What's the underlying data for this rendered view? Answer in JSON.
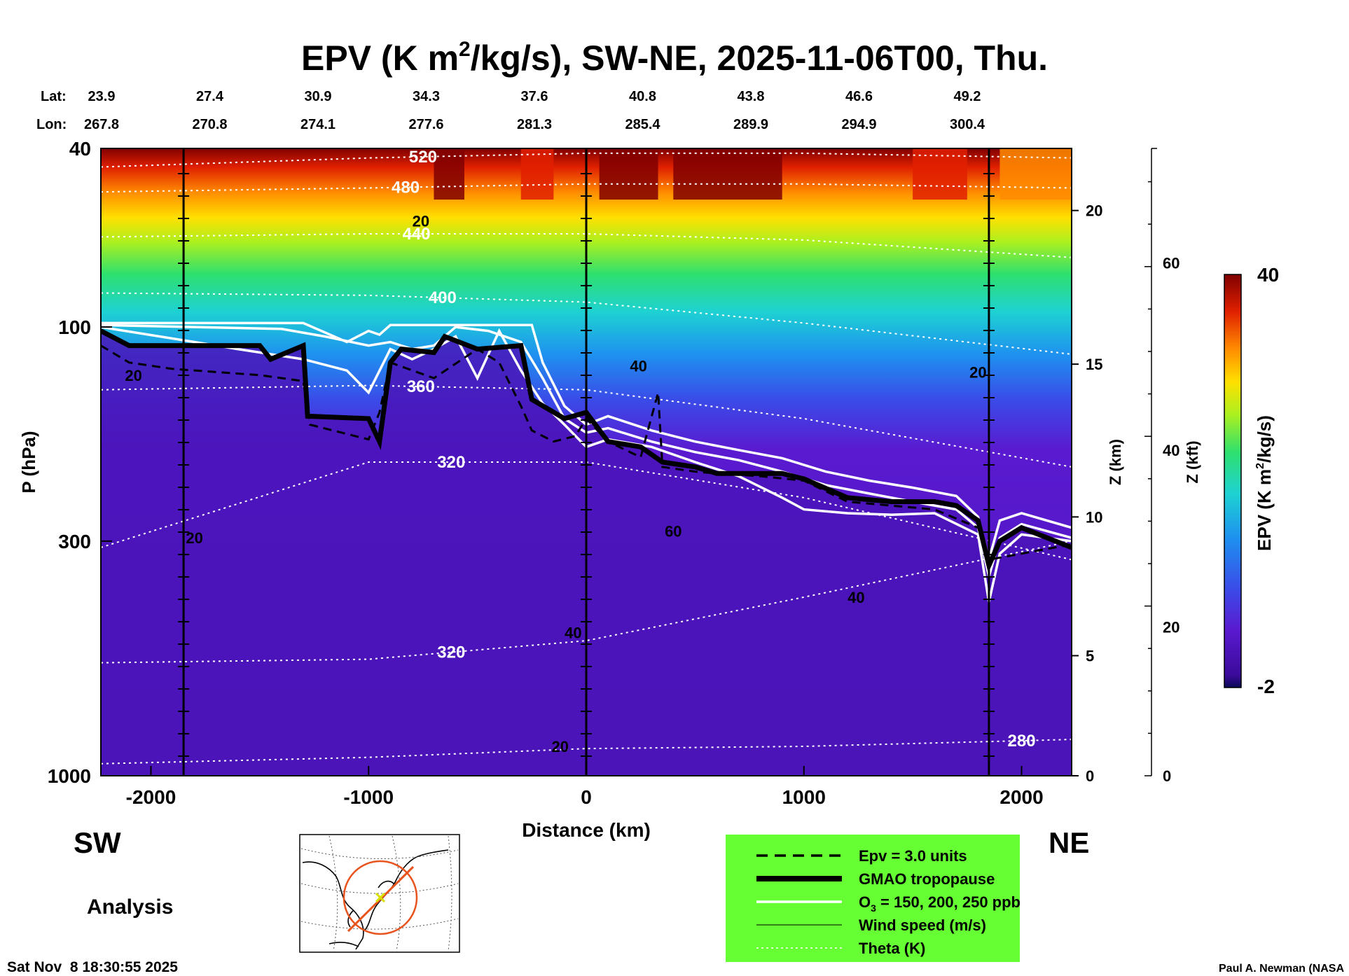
{
  "chart_data": {
    "type": "heatmap",
    "title": "EPV (K m²/kg/s), SW-NE, 2025-11-06T00, Thu.",
    "title_parts": {
      "pre": "EPV (K m",
      "sup": "2",
      "post": "/kg/s), SW-NE, 2025-11-06T00, Thu."
    },
    "xlabel": "Distance (km)",
    "ylabel": "P (hPa)",
    "z_km_label": "Z (km)",
    "z_kft_label": "Z (kft)",
    "colorbar_label": "EPV (K m²/kg/s)",
    "colorbar_label_parts": {
      "pre": "EPV (K m",
      "sup": "2",
      "post": "/kg/s)"
    },
    "colorbar_max_label": "40",
    "colorbar_min_label": "-2",
    "xlim": [
      -2230,
      2230
    ],
    "ylim_hpa": [
      1000,
      40
    ],
    "x_ticks": [
      -2000,
      -1000,
      0,
      1000,
      2000
    ],
    "x_tick_labels": [
      "-2000",
      "-1000",
      "0",
      "1000",
      "2000"
    ],
    "p_ticks": [
      40,
      100,
      300,
      1000
    ],
    "p_tick_labels": [
      "40",
      "100",
      "300",
      "1000"
    ],
    "z_km_ticks": [
      {
        "p": 1000,
        "label": "0"
      },
      {
        "p": 540,
        "label": "5"
      },
      {
        "p": 265,
        "label": "10"
      },
      {
        "p": 121,
        "label": "15"
      },
      {
        "p": 55,
        "label": "20"
      }
    ],
    "z_kft_ticks": [
      {
        "p": 1000,
        "label": "0"
      },
      {
        "p": 466,
        "label": "20"
      },
      {
        "p": 188,
        "label": "40"
      },
      {
        "p": 72,
        "label": "60"
      }
    ],
    "lat_label": "Lat:",
    "lon_label": "Lon:",
    "latlon_columns": [
      {
        "lat": "23.9",
        "lon": "267.8"
      },
      {
        "lat": "27.4",
        "lon": "270.8"
      },
      {
        "lat": "30.9",
        "lon": "274.1"
      },
      {
        "lat": "34.3",
        "lon": "277.6"
      },
      {
        "lat": "37.6",
        "lon": "281.3"
      },
      {
        "lat": "40.8",
        "lon": "285.4"
      },
      {
        "lat": "43.8",
        "lon": "289.9"
      },
      {
        "lat": "46.6",
        "lon": "294.9"
      },
      {
        "lat": "49.2",
        "lon": "300.4"
      }
    ],
    "vertical_markers_km": [
      -1850,
      0,
      1850
    ],
    "tropopause": {
      "x": [
        -2230,
        -2100,
        -1900,
        -1500,
        -1450,
        -1300,
        -1280,
        -1000,
        -950,
        -900,
        -850,
        -700,
        -650,
        -500,
        -300,
        -250,
        -100,
        0,
        100,
        250,
        350,
        500,
        600,
        700,
        900,
        1000,
        1200,
        1400,
        1600,
        1700,
        1800,
        1850,
        1900,
        2000,
        2230
      ],
      "p": [
        102,
        110,
        110,
        110,
        118,
        110,
        158,
        160,
        180,
        120,
        112,
        114,
        105,
        112,
        110,
        145,
        160,
        155,
        180,
        185,
        200,
        205,
        212,
        212,
        212,
        218,
        240,
        245,
        245,
        250,
        270,
        340,
        300,
        280,
        310
      ]
    },
    "epv3_units": {
      "x": [
        -2230,
        -2100,
        -1900,
        -1500,
        -1300,
        -1270,
        -1000,
        -950,
        -900,
        -700,
        -500,
        -400,
        -300,
        -250,
        -150,
        -50,
        0,
        100,
        250,
        330,
        350,
        500,
        600,
        800,
        1000,
        1200,
        1400,
        1600,
        1800,
        1850,
        2230
      ],
      "p": [
        110,
        120,
        124,
        128,
        132,
        165,
        178,
        155,
        120,
        130,
        112,
        120,
        150,
        170,
        180,
        175,
        160,
        180,
        195,
        140,
        205,
        210,
        212,
        215,
        220,
        245,
        250,
        255,
        280,
        330,
        305
      ]
    },
    "ozone_150": {
      "x": [
        -2230,
        -1800,
        -1300,
        -1100,
        -1000,
        -950,
        -900,
        -600,
        -400,
        -250,
        -200,
        -100,
        0,
        100,
        300,
        500,
        700,
        900,
        1100,
        1300,
        1500,
        1700,
        1800,
        1850,
        1900,
        2000,
        2230
      ],
      "p": [
        98,
        98,
        98,
        108,
        102,
        104,
        99,
        99,
        99,
        99,
        120,
        150,
        165,
        158,
        170,
        180,
        188,
        196,
        210,
        220,
        228,
        238,
        265,
        330,
        270,
        260,
        280
      ]
    },
    "ozone_200": {
      "x": [
        -2230,
        -1800,
        -1400,
        -1200,
        -1000,
        -900,
        -800,
        -700,
        -600,
        -450,
        -300,
        -200,
        -100,
        0,
        100,
        300,
        500,
        700,
        900,
        1100,
        1300,
        1500,
        1700,
        1800,
        1850,
        1900,
        2000,
        2230
      ],
      "p": [
        99,
        100,
        101,
        105,
        110,
        108,
        112,
        110,
        100,
        102,
        108,
        130,
        160,
        172,
        168,
        180,
        190,
        198,
        210,
        225,
        235,
        245,
        255,
        280,
        360,
        295,
        275,
        295
      ]
    },
    "ozone_250": {
      "x": [
        -2230,
        -1800,
        -1600,
        -1300,
        -1100,
        -1000,
        -900,
        -800,
        -700,
        -600,
        -500,
        -400,
        -300,
        -200,
        -100,
        0,
        100,
        300,
        500,
        700,
        900,
        1000,
        1200,
        1400,
        1600,
        1800,
        1850,
        1900,
        2000,
        2230
      ],
      "p": [
        100,
        108,
        112,
        118,
        125,
        140,
        112,
        118,
        112,
        105,
        130,
        102,
        125,
        148,
        165,
        185,
        178,
        185,
        200,
        215,
        240,
        255,
        260,
        262,
        260,
        290,
        410,
        320,
        290,
        300
      ]
    },
    "theta_levels": [
      {
        "label": "520",
        "x": [
          -2230,
          -1000,
          0,
          1000,
          2230
        ],
        "p": [
          44,
          42,
          41,
          41,
          42
        ],
        "label_x": -750
      },
      {
        "label": "480",
        "x": [
          -2230,
          -1000,
          0,
          1000,
          2230
        ],
        "p": [
          50,
          49,
          48,
          48,
          49
        ],
        "label_x": -830
      },
      {
        "label": "440",
        "x": [
          -2230,
          -1000,
          0,
          1000,
          2230
        ],
        "p": [
          63,
          62,
          62,
          64,
          70
        ],
        "label_x": -780
      },
      {
        "label": "400",
        "x": [
          -2230,
          -1000,
          0,
          1000,
          2230
        ],
        "p": [
          84,
          85,
          88,
          98,
          115
        ],
        "label_x": -660
      },
      {
        "label": "360",
        "x": [
          -2230,
          -1000,
          0,
          1000,
          2230
        ],
        "p": [
          138,
          135,
          138,
          160,
          205
        ],
        "label_x": -760
      },
      {
        "label": "320",
        "x": [
          -2230,
          -1000,
          0,
          1000,
          2230
        ],
        "p": [
          310,
          200,
          200,
          240,
          330
        ],
        "label_x": -620
      },
      {
        "label": "320",
        "x": [
          -2230,
          -1000,
          0,
          1000,
          2230
        ],
        "p": [
          560,
          550,
          500,
          400,
          300
        ],
        "label_x": -620
      },
      {
        "label": "280",
        "x": [
          -2230,
          -1000,
          0,
          1000,
          2230
        ],
        "p": [
          940,
          910,
          870,
          860,
          830
        ],
        "label_x": 2000
      }
    ],
    "wind_speed_labels": [
      {
        "label": "20",
        "x": -760,
        "p": 58
      },
      {
        "label": "20",
        "x": -2080,
        "p": 128
      },
      {
        "label": "20",
        "x": -1800,
        "p": 295
      },
      {
        "label": "40",
        "x": 240,
        "p": 122
      },
      {
        "label": "20",
        "x": 1800,
        "p": 126
      },
      {
        "label": "60",
        "x": 400,
        "p": 285
      },
      {
        "label": "40",
        "x": -60,
        "p": 480
      },
      {
        "label": "40",
        "x": 1240,
        "p": 400
      },
      {
        "label": "20",
        "x": -120,
        "p": 860
      }
    ],
    "legend_title_direction_left": "SW",
    "legend_title_direction_right": "NE",
    "legend": [
      {
        "key": "epv3",
        "label": "Epv = 3.0 units"
      },
      {
        "key": "tropopause",
        "label": "GMAO tropopause"
      },
      {
        "key": "ozone",
        "label_pre": "O",
        "label_sub": "3",
        "label_post": " = 150, 200, 250 ppb"
      },
      {
        "key": "wind",
        "label": "Wind speed (m/s)"
      },
      {
        "key": "theta",
        "label": "Theta (K)"
      }
    ]
  },
  "footer": {
    "analysis_label": "Analysis",
    "timestamp": "Sat Nov  8 18:30:55 2025",
    "credit": "Paul A. Newman (NASA"
  },
  "colors": {
    "legend_bg": "#66ff33",
    "colormap": [
      "#0a0a55",
      "#3a0a9a",
      "#5a1ad0",
      "#3a4ce8",
      "#1e90f0",
      "#1ed2d2",
      "#2ee06e",
      "#aaf020",
      "#ffe000",
      "#ff8c00",
      "#e02000",
      "#800000"
    ]
  }
}
